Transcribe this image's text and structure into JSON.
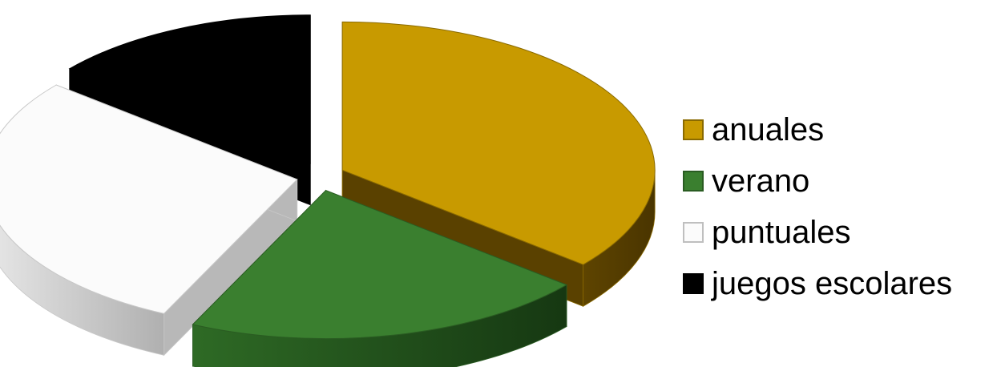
{
  "chart_data": {
    "type": "pie",
    "style": "3d-exploded",
    "categories": [
      "anuales",
      "verano",
      "puntuales",
      "juegos escolares"
    ],
    "values": [
      36,
      21,
      29,
      14
    ],
    "unit": "percent (estimated share of pie)",
    "legend_position": "right",
    "colors": {
      "anuales": {
        "top": "#C89A00",
        "side": "#5A4100",
        "edge": "#8A6A00"
      },
      "verano": {
        "top": "#3A7F2F",
        "side": "#1F4A17",
        "edge": "#2A5C22"
      },
      "puntuales": {
        "top": "#FBFBFB",
        "side": "#B8B8B8",
        "edge": "#C8C8C8"
      },
      "juegos escolares": {
        "top": "#000000",
        "side": "#000000",
        "edge": "#000000"
      }
    }
  }
}
